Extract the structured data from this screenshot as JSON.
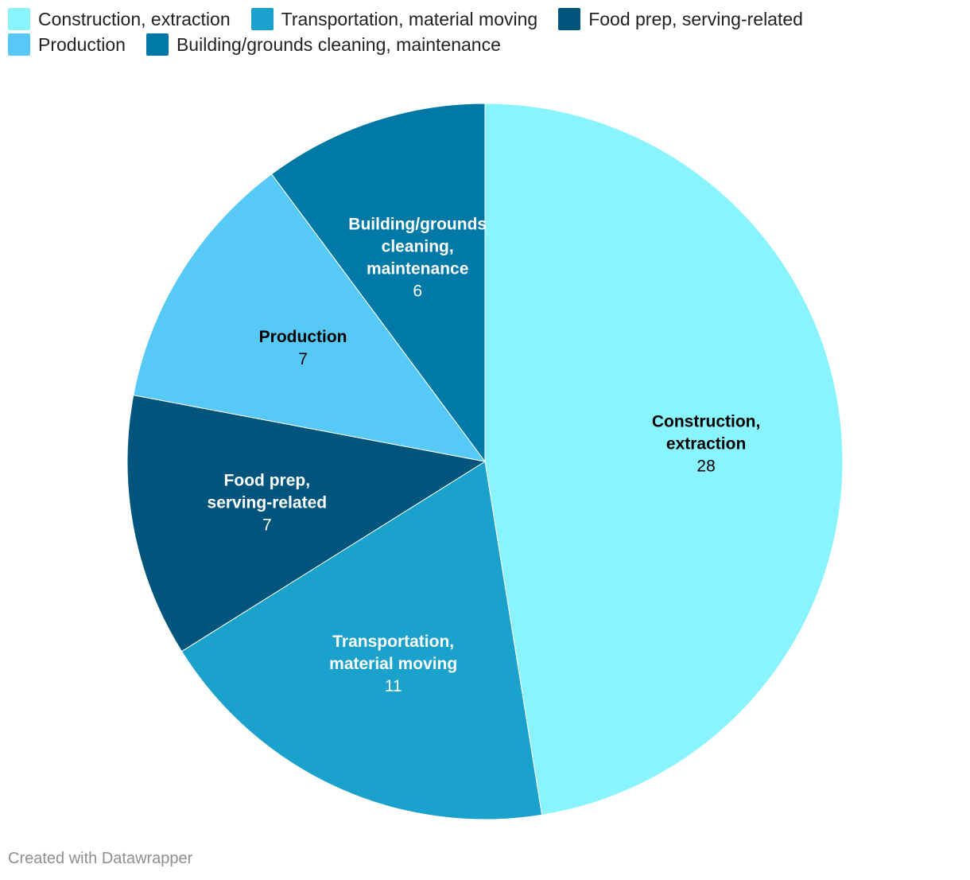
{
  "chart_data": {
    "type": "pie",
    "title": "",
    "categories": [
      "Construction, extraction",
      "Transportation, material moving",
      "Food prep, serving-related",
      "Production",
      "Building/grounds cleaning, maintenance"
    ],
    "values": [
      28,
      11,
      7,
      7,
      6
    ],
    "colors": [
      "#8af4fe",
      "#1aa1cc",
      "#01557c",
      "#56c9f6",
      "#0079a6"
    ],
    "label_text_colors": [
      "#000000",
      "#ffffff",
      "#ffffff",
      "#000000",
      "#ffffff"
    ],
    "slice_labels": [
      {
        "name_lines": [
          "Construction,",
          "extraction"
        ],
        "value": "28"
      },
      {
        "name_lines": [
          "Transportation,",
          "material moving"
        ],
        "value": "11"
      },
      {
        "name_lines": [
          "Food prep,",
          "serving-related"
        ],
        "value": "7"
      },
      {
        "name_lines": [
          "Production"
        ],
        "value": "7"
      },
      {
        "name_lines": [
          "Building/grounds",
          "cleaning,",
          "maintenance"
        ],
        "value": "6"
      }
    ],
    "legend": {
      "placement": "top-left",
      "rows": [
        [
          {
            "label": "Construction, extraction",
            "color": "#8af4fe"
          },
          {
            "label": "Transportation, material moving",
            "color": "#1aa1cc"
          },
          {
            "label": "Food prep, serving-related",
            "color": "#01557c"
          }
        ],
        [
          {
            "label": "Production",
            "color": "#56c9f6"
          },
          {
            "label": "Building/grounds cleaning, maintenance",
            "color": "#0079a6"
          }
        ]
      ]
    },
    "start_angle": "12 o'clock",
    "direction": "clockwise"
  },
  "footer": {
    "credit": "Created with Datawrapper"
  }
}
